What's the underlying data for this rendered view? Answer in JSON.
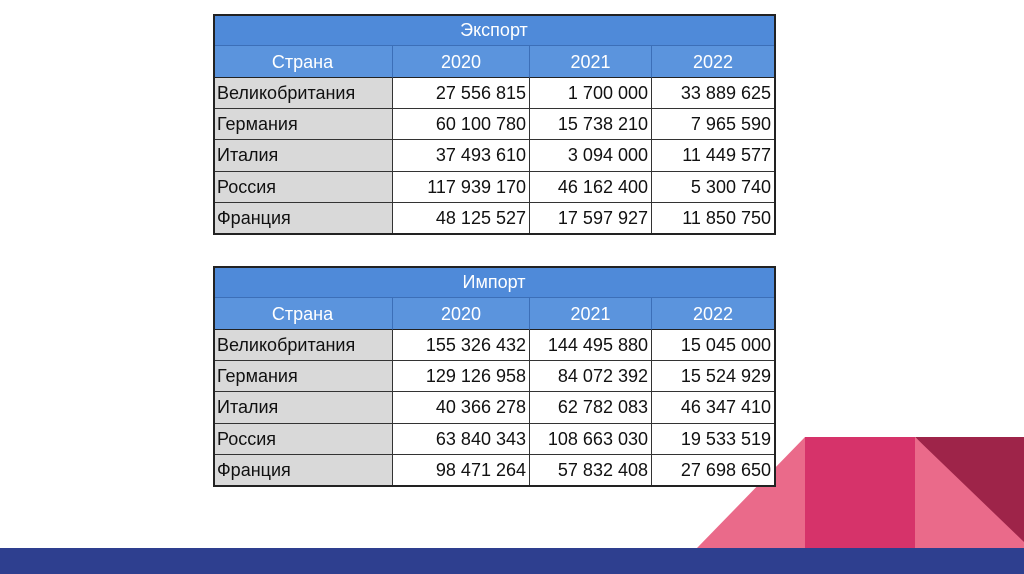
{
  "tables": [
    {
      "title": "Экспорт",
      "header": [
        "Страна",
        "2020",
        "2021",
        "2022"
      ],
      "rows": [
        [
          "Великобритания",
          "27 556 815",
          "1 700 000",
          "33 889 625"
        ],
        [
          "Германия",
          "60 100 780",
          "15 738 210",
          "7 965 590"
        ],
        [
          "Италия",
          "37 493 610",
          "3 094 000",
          "11 449 577"
        ],
        [
          "Россия",
          "117 939 170",
          "46 162 400",
          "5 300 740"
        ],
        [
          "Франция",
          "48 125 527",
          "17 597 927",
          "11 850 750"
        ]
      ]
    },
    {
      "title": "Импорт",
      "header": [
        "Страна",
        "2020",
        "2021",
        "2022"
      ],
      "rows": [
        [
          "Великобритания",
          "155 326 432",
          "144 495 880",
          "15 045 000"
        ],
        [
          "Германия",
          "129 126 958",
          "84 072 392",
          "15 524 929"
        ],
        [
          "Италия",
          "40 366 278",
          "62 782 083",
          "46 347 410"
        ],
        [
          "Россия",
          "63 840 343",
          "108 663 030",
          "19 533 519"
        ],
        [
          "Франция",
          "98 471 264",
          "57 832 408",
          "27 698 650"
        ]
      ]
    }
  ]
}
